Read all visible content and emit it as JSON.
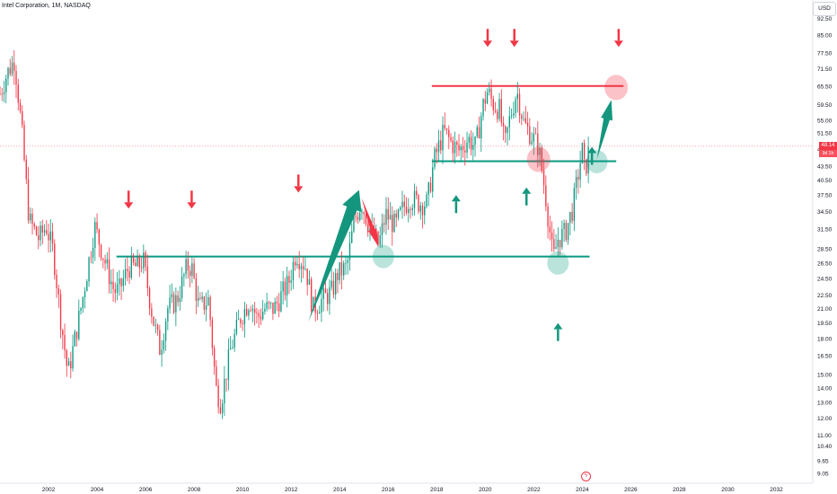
{
  "header": {
    "title": "Intel Corporation, 1M, NASDAQ",
    "currency": "USD"
  },
  "last_price": {
    "value": "48.14",
    "countdown": "9d 1h"
  },
  "colors": {
    "up": "#089981",
    "down": "#f23645",
    "support": "#089981",
    "resistance": "#f23645",
    "arrow_green": "#14967e",
    "arrow_red": "#f23645"
  },
  "icons": [
    "lightning-icon",
    "down-arrow-marker",
    "up-arrow-marker"
  ],
  "chart_data": {
    "type": "candlestick",
    "title": "Intel Corporation, 1M, NASDAQ",
    "y_scale": "log",
    "ylim": [
      8.6,
      98
    ],
    "xlim": [
      2000.0,
      2033.5
    ],
    "y_ticks": [
      "92.50",
      "85.00",
      "77.50",
      "71.50",
      "65.50",
      "59.50",
      "55.00",
      "51.50",
      "47.50",
      "43.50",
      "40.50",
      "37.50",
      "34.50",
      "31.50",
      "28.50",
      "26.50",
      "24.50",
      "22.50",
      "21.00",
      "19.50",
      "18.00",
      "16.50",
      "15.00",
      "14.00",
      "13.00",
      "12.00",
      "11.00",
      "10.40",
      "9.65",
      "9.05"
    ],
    "x_ticks": [
      "2002",
      "2004",
      "2006",
      "2008",
      "2010",
      "2012",
      "2014",
      "2016",
      "2018",
      "2020",
      "2022",
      "2024",
      "2026",
      "2028",
      "2030",
      "2032"
    ],
    "price_path": [
      [
        2000.0,
        63
      ],
      [
        2000.3,
        70
      ],
      [
        2000.6,
        75
      ],
      [
        2000.9,
        52
      ],
      [
        2001.2,
        33
      ],
      [
        2001.6,
        30
      ],
      [
        2001.9,
        32
      ],
      [
        2002.2,
        28
      ],
      [
        2002.5,
        20
      ],
      [
        2002.8,
        15
      ],
      [
        2003.0,
        17
      ],
      [
        2003.4,
        22
      ],
      [
        2003.9,
        32
      ],
      [
        2004.3,
        27
      ],
      [
        2004.7,
        23
      ],
      [
        2004.9,
        23
      ],
      [
        2005.3,
        26
      ],
      [
        2005.7,
        26
      ],
      [
        2005.9,
        27
      ],
      [
        2006.3,
        20
      ],
      [
        2006.6,
        17
      ],
      [
        2006.9,
        21
      ],
      [
        2007.3,
        22
      ],
      [
        2007.7,
        26
      ],
      [
        2007.9,
        26
      ],
      [
        2008.2,
        21
      ],
      [
        2008.6,
        22
      ],
      [
        2008.9,
        14
      ],
      [
        2009.1,
        13
      ],
      [
        2009.5,
        17
      ],
      [
        2009.9,
        20
      ],
      [
        2010.3,
        22
      ],
      [
        2010.6,
        20
      ],
      [
        2010.9,
        21
      ],
      [
        2011.3,
        21
      ],
      [
        2011.7,
        23
      ],
      [
        2011.9,
        24
      ],
      [
        2012.2,
        28
      ],
      [
        2012.6,
        26
      ],
      [
        2012.9,
        21
      ],
      [
        2013.3,
        22
      ],
      [
        2013.7,
        23
      ],
      [
        2013.9,
        25
      ],
      [
        2014.3,
        26
      ],
      [
        2014.6,
        33
      ],
      [
        2014.9,
        36
      ],
      [
        2015.3,
        31
      ],
      [
        2015.6,
        29
      ],
      [
        2015.9,
        34
      ],
      [
        2016.3,
        32
      ],
      [
        2016.6,
        35
      ],
      [
        2016.9,
        37
      ],
      [
        2017.3,
        36
      ],
      [
        2017.6,
        36
      ],
      [
        2017.9,
        45
      ],
      [
        2018.3,
        52
      ],
      [
        2018.6,
        49
      ],
      [
        2018.9,
        47
      ],
      [
        2019.3,
        50
      ],
      [
        2019.6,
        48
      ],
      [
        2019.9,
        59
      ],
      [
        2020.1,
        64
      ],
      [
        2020.3,
        60
      ],
      [
        2020.6,
        58
      ],
      [
        2020.8,
        48
      ],
      [
        2021.0,
        55
      ],
      [
        2021.3,
        64
      ],
      [
        2021.6,
        54
      ],
      [
        2021.9,
        51
      ],
      [
        2022.2,
        48
      ],
      [
        2022.5,
        37
      ],
      [
        2022.8,
        27
      ],
      [
        2023.0,
        30
      ],
      [
        2023.3,
        31
      ],
      [
        2023.6,
        35
      ],
      [
        2023.9,
        44
      ],
      [
        2024.0,
        47
      ],
      [
        2024.1,
        42
      ],
      [
        2024.3,
        48.14
      ]
    ],
    "levels": [
      {
        "kind": "support",
        "price": 27.4,
        "from": 2004.8,
        "to": 2024.3
      },
      {
        "kind": "support",
        "price": 44.6,
        "from": 2017.8,
        "to": 2025.4
      },
      {
        "kind": "resistance",
        "price": 65.5,
        "from": 2017.8,
        "to": 2025.7
      },
      {
        "kind": "current",
        "price": 48.14,
        "from": 2000.0,
        "to": 2033.5
      }
    ],
    "annotations": {
      "down_arrows": [
        [
          2005.3,
          35
        ],
        [
          2007.9,
          35
        ],
        [
          2012.3,
          38
        ],
        [
          2020.1,
          80
        ],
        [
          2021.2,
          80
        ],
        [
          2025.5,
          80
        ]
      ],
      "up_arrows": [
        [
          2018.8,
          37.5
        ],
        [
          2021.7,
          39
        ],
        [
          2023.0,
          19.5
        ],
        [
          2024.4,
          48
        ]
      ],
      "green_circles": [
        [
          2015.8,
          27.4
        ],
        [
          2023.0,
          26.5
        ],
        [
          2024.6,
          44.5
        ]
      ],
      "red_circles": [
        [
          2022.2,
          45
        ],
        [
          2025.4,
          65
        ]
      ],
      "big_green_arrows": [
        [
          2012.7,
          19.6,
          2014.8,
          38.5
        ],
        [
          2024.6,
          45,
          2025.2,
          61
        ]
      ],
      "big_red_arrows": [
        [
          2014.9,
          37,
          2015.6,
          28.8
        ]
      ]
    }
  }
}
